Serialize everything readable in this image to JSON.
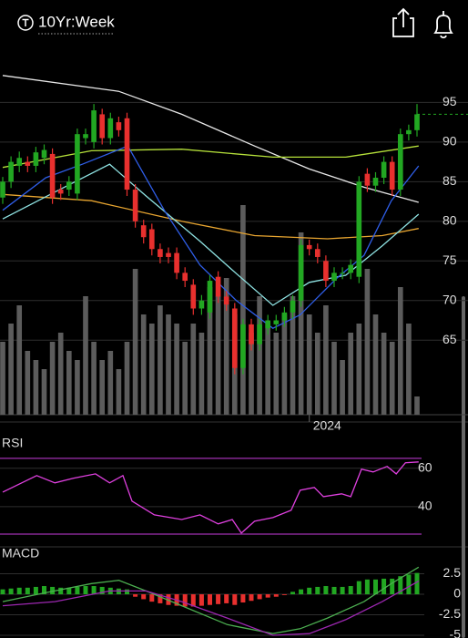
{
  "chart_data": [
    {
      "type": "candlestick",
      "title": "10Yr:Week",
      "x": [
        0,
        1,
        2,
        3,
        4,
        5,
        6,
        7,
        8,
        9,
        10,
        11,
        12,
        13,
        14,
        15,
        16,
        17,
        18,
        19,
        20,
        21,
        22,
        23,
        24,
        25,
        26,
        27,
        28,
        29,
        30,
        31,
        32,
        33,
        34,
        35,
        36,
        37,
        38,
        39,
        40,
        41,
        42,
        43,
        44,
        45,
        46,
        47,
        48,
        49,
        50
      ],
      "open": [
        83,
        85,
        87,
        87.5,
        87,
        88,
        88.5,
        84,
        84,
        83.5,
        90.5,
        90,
        93.5,
        90.5,
        92.5,
        93,
        84,
        79.5,
        79,
        76.5,
        76,
        76,
        73.5,
        72,
        69,
        68.5,
        73,
        70.5,
        69,
        61.5,
        67,
        64.5,
        66.5,
        67,
        67.5,
        68.5,
        70,
        77,
        76.5,
        75,
        72.5,
        73.5,
        73.5,
        73,
        86,
        84.5,
        85.5,
        87.5,
        84,
        91,
        91.5
      ],
      "high": [
        85.6,
        88.2,
        88.8,
        88.2,
        89.4,
        89.7,
        89.2,
        84.7,
        85.7,
        91.7,
        91.7,
        94.8,
        94.2,
        93.7,
        93.2,
        93.7,
        84.7,
        80.2,
        79.7,
        77.2,
        76.7,
        76.7,
        74.2,
        72.7,
        70.7,
        73.2,
        73.7,
        71.2,
        69.7,
        67.7,
        67.7,
        67.7,
        68.2,
        68.2,
        69.2,
        70.7,
        77.7,
        77.7,
        77.2,
        75.7,
        74.2,
        74.2,
        75.2,
        85.7,
        86.7,
        86.2,
        88.2,
        88.2,
        91.7,
        92.2,
        94.8
      ],
      "low": [
        82.2,
        84.2,
        86.2,
        86.2,
        86.2,
        87.2,
        82.2,
        82.7,
        83.2,
        82.7,
        89.7,
        89.2,
        89.7,
        89.7,
        90.7,
        83.2,
        79.2,
        77.2,
        75.7,
        74.7,
        74.7,
        72.7,
        71.7,
        68.2,
        68.2,
        67.7,
        69.7,
        68.7,
        60.7,
        60.7,
        63.7,
        63.7,
        65.7,
        66.2,
        66.7,
        67.7,
        69.2,
        75.7,
        74.7,
        71.7,
        71.7,
        72.7,
        72.7,
        72.2,
        83.7,
        83.7,
        84.7,
        83.2,
        83.2,
        90.2,
        90.7
      ],
      "close": [
        85,
        87.5,
        88,
        87,
        88.7,
        89,
        83,
        83.5,
        85,
        91,
        91,
        94,
        90.5,
        93,
        91.5,
        84,
        80,
        78,
        76.5,
        75.5,
        75.5,
        73.5,
        72.5,
        69,
        70,
        72.5,
        70.5,
        69.5,
        61.5,
        67,
        64.5,
        67,
        67.5,
        67.5,
        68.5,
        70,
        77,
        76.5,
        75.5,
        72.5,
        73.5,
        73.5,
        74.5,
        85,
        84.5,
        85.5,
        87.5,
        84,
        91,
        91.5,
        93.5
      ],
      "up_color": "#22a722",
      "down_color": "#e8302e",
      "volume": [
        80,
        100,
        120,
        70,
        60,
        50,
        80,
        90,
        70,
        60,
        130,
        80,
        60,
        70,
        50,
        80,
        160,
        110,
        100,
        120,
        110,
        100,
        80,
        100,
        90,
        140,
        130,
        150,
        110,
        230,
        90,
        130,
        100,
        90,
        110,
        130,
        200,
        110,
        90,
        120,
        80,
        60,
        90,
        100,
        160,
        110,
        90,
        80,
        140,
        100,
        20
      ],
      "volume_color": "#5c5c5c",
      "volume_lim": [
        0,
        380
      ],
      "overlays": [
        {
          "color": "#e8e8e8",
          "x": [
            0,
            14,
            21.6,
            30.4,
            37,
            43.6,
            50.2
          ],
          "values": [
            98.4,
            96.4,
            93.5,
            89.5,
            86.6,
            84.3,
            82.4
          ]
        },
        {
          "color": "#b5e03a",
          "x": [
            0,
            10.7,
            21.6,
            32.6,
            41.4,
            50.2
          ],
          "values": [
            86.8,
            88.9,
            89.1,
            88.1,
            88.1,
            89.5
          ]
        },
        {
          "color": "#e8a530",
          "x": [
            0,
            10.7,
            21.6,
            30.4,
            39.2,
            45.8,
            50.2
          ],
          "values": [
            83.4,
            82.6,
            80,
            78.2,
            77.8,
            78.2,
            79.1
          ]
        },
        {
          "color": "#8fe3e3",
          "x": [
            0,
            6.3,
            12.9,
            17.3,
            23.8,
            28.2,
            32.6,
            37,
            41.4,
            45.8,
            50.2
          ],
          "values": [
            80.3,
            83.7,
            87.2,
            83.2,
            77.5,
            73.4,
            69.4,
            72.3,
            73.2,
            76.9,
            80.9
          ]
        },
        {
          "color": "#2f5ee8",
          "x": [
            0,
            5.2,
            9.6,
            15.1,
            19.5,
            23.8,
            28.2,
            32.6,
            35.9,
            40.3,
            43.6,
            46.9,
            50.2
          ],
          "values": [
            81.4,
            85.5,
            87.2,
            89.5,
            81.4,
            74.5,
            70,
            66.5,
            68.2,
            72.8,
            75.7,
            82.6,
            87
          ]
        }
      ],
      "xlim": [
        -0.33,
        50.77
      ],
      "xticks": [
        {
          "value": 37,
          "label": "2024"
        }
      ],
      "ylim": [
        55.6,
        99.3
      ],
      "yticks": [
        65,
        70,
        75,
        80,
        85,
        90,
        95
      ],
      "grid": true
    },
    {
      "type": "line",
      "title": "RSI",
      "x": [
        0,
        4.1,
        6.3,
        8.5,
        11.2,
        12.9,
        14.5,
        15.6,
        18.3,
        21.6,
        23.8,
        26,
        27.7,
        28.8,
        30.4,
        32.6,
        34.8,
        35.9,
        37.6,
        38.7,
        40.9,
        42,
        43.3,
        44.7,
        46.4,
        47.5,
        48.6,
        50.2
      ],
      "values": [
        47.6,
        56.2,
        52.4,
        54.8,
        57.1,
        52.4,
        56.2,
        42.9,
        35.7,
        33.3,
        35.7,
        31,
        33.3,
        26.2,
        32.4,
        34.3,
        38.1,
        48.6,
        50,
        45.2,
        46.7,
        45.2,
        59.5,
        58.1,
        61,
        57.1,
        62.9,
        63.3
      ],
      "color": "#e040e0",
      "levels": [
        65.2,
        25.7
      ],
      "level_color": "#a030b0",
      "xlim": [
        -0.33,
        50.77
      ],
      "ylim": [
        20,
        77
      ],
      "yticks": [
        40,
        60
      ]
    },
    {
      "type": "macd",
      "title": "MACD",
      "histogram": [
        0.6,
        0.7,
        0.8,
        0.8,
        0.9,
        1.0,
        0.9,
        0.8,
        0.8,
        0.9,
        1.0,
        1.0,
        0.9,
        0.8,
        0.7,
        0.6,
        -0.3,
        -0.6,
        -0.9,
        -1.1,
        -1.3,
        -1.4,
        -1.5,
        -1.5,
        -1.4,
        -1.3,
        -1.2,
        -1.1,
        -1.3,
        -1.0,
        -0.8,
        -0.6,
        -0.4,
        -0.3,
        -0.1,
        0.3,
        0.6,
        0.8,
        0.9,
        1.0,
        0.9,
        0.9,
        1.0,
        1.6,
        1.8,
        1.8,
        1.9,
        1.9,
        2.2,
        2.4,
        2.6
      ],
      "pos_color": "#22a722",
      "neg_color": "#e8302e",
      "lines": [
        {
          "color": "#4caf50",
          "x": [
            0,
            5.2,
            10.7,
            14,
            17.3,
            21.6,
            27.1,
            32.6,
            35.9,
            39.2,
            43.6,
            46.9,
            50.2
          ],
          "values": [
            -0.9,
            0.2,
            1.3,
            1.7,
            0.4,
            -1.4,
            -3.7,
            -4.8,
            -4.2,
            -2.9,
            -0.9,
            1.3,
            3.3
          ]
        },
        {
          "color": "#9c27b0",
          "x": [
            0,
            6.3,
            12.9,
            17.3,
            21.6,
            27.1,
            32.6,
            37,
            41.4,
            45.8,
            50.2
          ],
          "values": [
            -1.4,
            -0.9,
            0.4,
            0.4,
            -0.9,
            -2.9,
            -5.0,
            -4.8,
            -3.1,
            -0.9,
            1.6
          ]
        }
      ],
      "xlim": [
        -0.33,
        50.77
      ],
      "ylim": [
        -5.33,
        5.78
      ],
      "yticks": [
        -5,
        -2.5,
        0,
        2.5
      ]
    }
  ]
}
